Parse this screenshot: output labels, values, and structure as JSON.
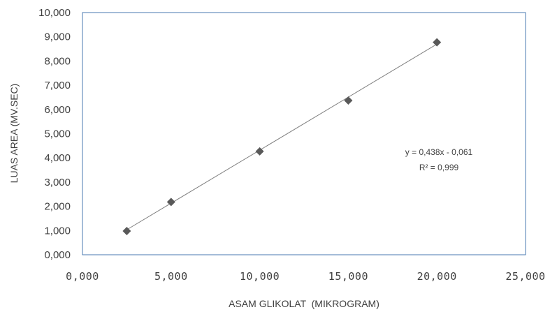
{
  "chart_data": {
    "type": "scatter",
    "xlabel": "ASAM GLIKOLAT  (MIKROGRAM)",
    "ylabel": "LUAS AREA (MV.SEC)",
    "xlim": [
      0,
      25
    ],
    "ylim": [
      0,
      10
    ],
    "x_ticks": [
      "0,000",
      "5,000",
      "10,000",
      "15,000",
      "20,000",
      "25,000"
    ],
    "y_ticks": [
      "0,000",
      "1,000",
      "2,000",
      "3,000",
      "4,000",
      "5,000",
      "6,000",
      "7,000",
      "8,000",
      "9,000",
      "10,000"
    ],
    "series": [
      {
        "x": [
          2.5,
          5,
          10,
          15,
          20
        ],
        "y": [
          0.98,
          2.18,
          4.27,
          6.37,
          8.77
        ]
      }
    ],
    "trendline": {
      "slope": 0.438,
      "intercept": -0.061,
      "x_range": [
        2.5,
        20
      ]
    },
    "annotation": {
      "equation": "y = 0,438x - 0,061",
      "r_squared": "R² = 0,999"
    },
    "colors": {
      "marker": "#595959",
      "trendline": "#7f7f7f",
      "plot_border": "#4a7ab0"
    },
    "grid": false
  }
}
